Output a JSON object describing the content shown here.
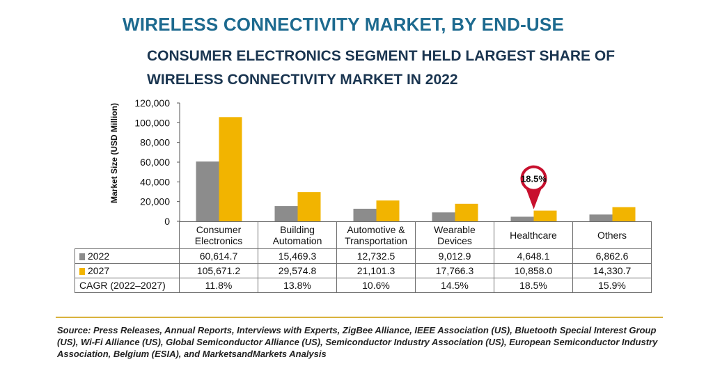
{
  "title": "WIRELESS CONNECTIVITY MARKET, BY END-USE",
  "subtitle": "CONSUMER ELECTRONICS SEGMENT HELD LARGEST SHARE OF WIRELESS CONNECTIVITY MARKET IN 2022",
  "chart_data": {
    "type": "bar",
    "ylabel": "Market Size (USD Million)",
    "ylim": [
      0,
      120000
    ],
    "yticks": [
      "0",
      "20,000",
      "40,000",
      "60,000",
      "80,000",
      "100,000",
      "120,000"
    ],
    "categories": [
      "Consumer Electronics",
      "Building Automation",
      "Automotive & Transportation",
      "Wearable Devices",
      "Healthcare",
      "Others"
    ],
    "series": [
      {
        "name": "2022",
        "color": "#8c8c8c",
        "values": [
          60614.7,
          15469.3,
          12732.5,
          9012.9,
          4648.1,
          6862.6
        ]
      },
      {
        "name": "2027",
        "color": "#f2b400",
        "values": [
          105671.2,
          29574.8,
          21101.3,
          17766.3,
          10858.0,
          14330.7
        ]
      }
    ],
    "callout": {
      "category": "Healthcare",
      "text": "18.5%",
      "color": "#c8102e"
    },
    "grid": false
  },
  "table": {
    "categories": [
      [
        "Consumer",
        "Electronics"
      ],
      [
        "Building",
        "Automation"
      ],
      [
        "Automotive &",
        "Transportation"
      ],
      [
        "Wearable",
        "Devices"
      ],
      [
        "Healthcare"
      ],
      [
        "Others"
      ]
    ],
    "rows": [
      {
        "label": "2022",
        "values": [
          "60,614.7",
          "15,469.3",
          "12,732.5",
          "9,012.9",
          "4,648.1",
          "6,862.6"
        ]
      },
      {
        "label": "2027",
        "values": [
          "105,671.2",
          "29,574.8",
          "21,101.3",
          "17,766.3",
          "10,858.0",
          "14,330.7"
        ]
      },
      {
        "label": "CAGR (2022–2027)",
        "values": [
          "11.8%",
          "13.8%",
          "10.6%",
          "14.5%",
          "18.5%",
          "15.9%"
        ]
      }
    ]
  },
  "source": "Source: Press Releases, Annual Reports, Interviews with Experts, ZigBee Alliance, IEEE Association (US), Bluetooth Special Interest Group (US), Wi-Fi Alliance (US), Global Semiconductor Alliance (US), Semiconductor Industry Association (US), European Semiconductor Industry Association, Belgium (ESIA), and MarketsandMarkets Analysis"
}
